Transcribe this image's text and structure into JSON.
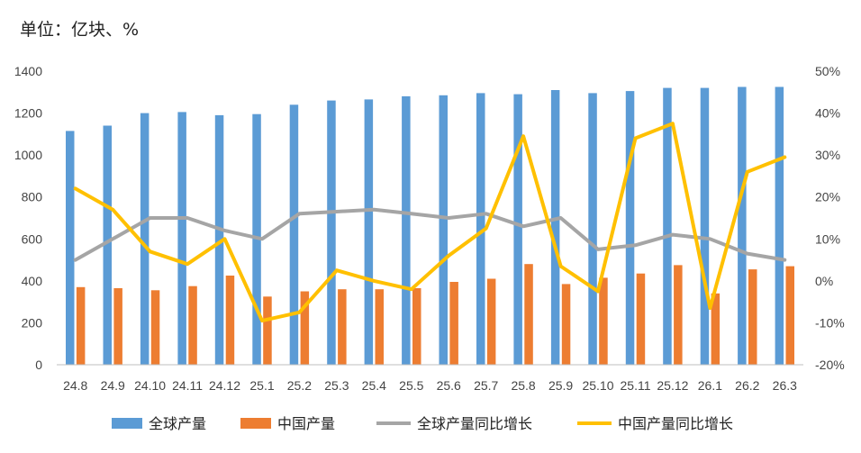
{
  "unit_label": "单位：亿块、%",
  "chart_data": {
    "type": "bar+line",
    "categories": [
      "24.8",
      "24.9",
      "24.10",
      "24.11",
      "24.12",
      "25.1",
      "25.2",
      "25.3",
      "25.4",
      "25.5",
      "25.6",
      "25.7",
      "25.8",
      "25.9",
      "25.10",
      "25.11",
      "25.12",
      "26.1",
      "26.2",
      "26.3"
    ],
    "left_axis": {
      "ylim": [
        0,
        1400
      ],
      "ticks": [
        "0",
        "200",
        "400",
        "600",
        "800",
        "1000",
        "1200",
        "1400"
      ]
    },
    "right_axis": {
      "ylim": [
        -20,
        50
      ],
      "ticks": [
        "-20%",
        "-10%",
        "0%",
        "10%",
        "20%",
        "30%",
        "40%",
        "50%"
      ]
    },
    "grid": false,
    "legend": "bottom",
    "series": [
      {
        "name": "全球产量",
        "type": "bar",
        "axis": "left",
        "color": "#5B9BD5",
        "values": [
          1115,
          1140,
          1200,
          1205,
          1190,
          1195,
          1240,
          1260,
          1265,
          1280,
          1285,
          1295,
          1290,
          1310,
          1295,
          1305,
          1320,
          1320,
          1325,
          1325
        ]
      },
      {
        "name": "中国产量",
        "type": "bar",
        "axis": "left",
        "color": "#ED7D31",
        "values": [
          370,
          365,
          355,
          375,
          425,
          325,
          350,
          360,
          360,
          365,
          395,
          410,
          480,
          385,
          415,
          435,
          475,
          340,
          455,
          470
        ]
      },
      {
        "name": "全球产量同比增长",
        "type": "line",
        "axis": "right",
        "color": "#A5A5A5",
        "values": [
          5,
          10,
          15,
          15,
          12,
          10,
          16,
          16.5,
          17,
          16,
          15,
          16,
          13,
          15,
          7.5,
          8.5,
          11,
          10,
          6.5,
          5
        ]
      },
      {
        "name": "中国产量同比增长",
        "type": "line",
        "axis": "right",
        "color": "#FFC000",
        "values": [
          22,
          17,
          7,
          4,
          10,
          -9.5,
          -7.5,
          2.5,
          0,
          -2,
          6,
          12.5,
          34.5,
          3.5,
          -2.5,
          34,
          37.5,
          -6.5,
          26,
          29.5
        ]
      }
    ]
  }
}
